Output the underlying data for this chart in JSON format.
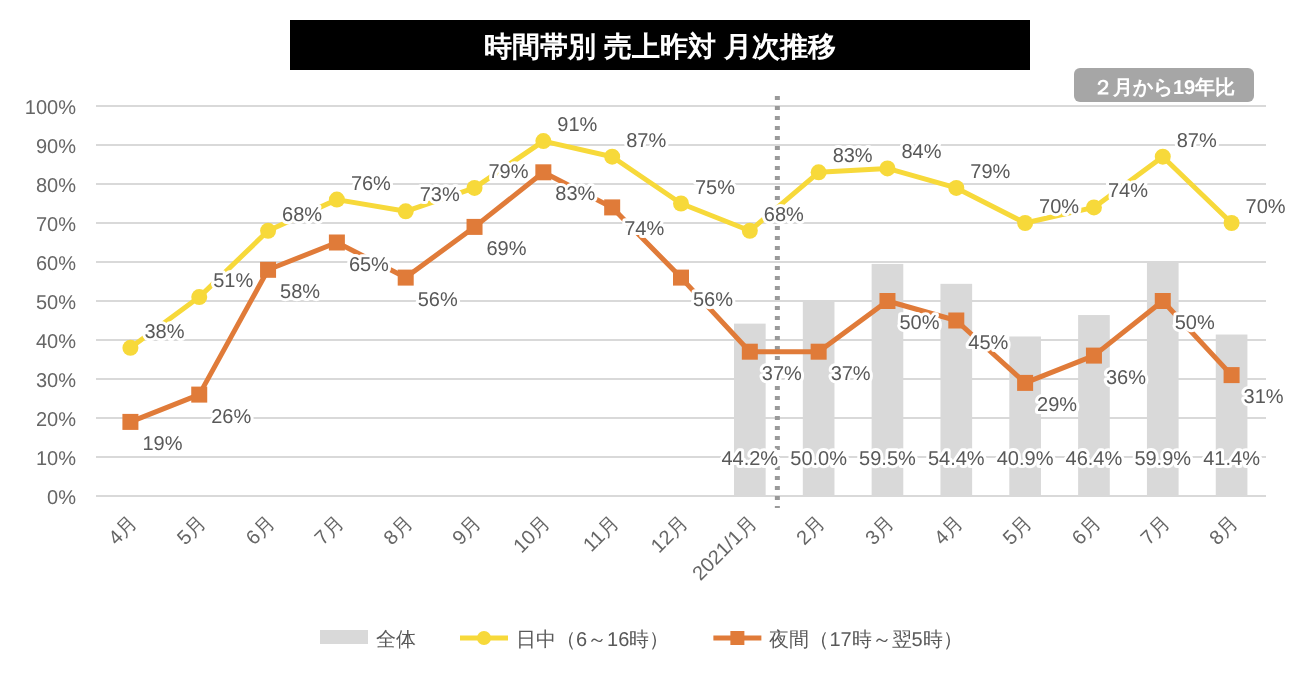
{
  "chart_data": {
    "type": "line",
    "title": "時間帯別 売上昨対 月次推移",
    "annotations": [
      "２月から19年比"
    ],
    "categories": [
      "4月",
      "5月",
      "6月",
      "7月",
      "8月",
      "9月",
      "10月",
      "11月",
      "12月",
      "2021/1月",
      "2月",
      "3月",
      "4月",
      "5月",
      "6月",
      "7月",
      "8月"
    ],
    "ylim": [
      0,
      100
    ],
    "yticks": [
      {
        "value": 0,
        "label": "0%"
      },
      {
        "value": 10,
        "label": "10%"
      },
      {
        "value": 20,
        "label": "20%"
      },
      {
        "value": 30,
        "label": "30%"
      },
      {
        "value": 40,
        "label": "40%"
      },
      {
        "value": 50,
        "label": "50%"
      },
      {
        "value": 60,
        "label": "60%"
      },
      {
        "value": 70,
        "label": "70%"
      },
      {
        "value": 80,
        "label": "80%"
      },
      {
        "value": 90,
        "label": "90%"
      },
      {
        "value": 100,
        "label": "100%"
      }
    ],
    "grid": "y",
    "legend": "bottom",
    "ref_lines": [
      {
        "axis": "x",
        "value": "2021/1月",
        "color": "#999999",
        "line_style": "dotted"
      }
    ],
    "series": [
      {
        "name": "全体",
        "type": "bar",
        "color": "#d9d9d9",
        "values": [
          null,
          null,
          null,
          null,
          null,
          null,
          null,
          null,
          null,
          44.2,
          50.0,
          59.5,
          54.4,
          40.9,
          46.4,
          59.9,
          41.4
        ],
        "value_labels": [
          null,
          null,
          null,
          null,
          null,
          null,
          null,
          null,
          null,
          "44.2%",
          "50.0%",
          "59.5%",
          "54.4%",
          "40.9%",
          "46.4%",
          "59.9%",
          "41.4%"
        ]
      },
      {
        "name": "日中（6～16時）",
        "color": "#f7d93a",
        "marker": "circle",
        "values": [
          38,
          51,
          68,
          76,
          73,
          79,
          91,
          87,
          75,
          68,
          83,
          84,
          79,
          70,
          74,
          87,
          70
        ],
        "value_labels": [
          "38%",
          "51%",
          "68%",
          "76%",
          "73%",
          "79%",
          "91%",
          "87%",
          "75%",
          "68%",
          "83%",
          "84%",
          "79%",
          "70%",
          "74%",
          "87%",
          "70%"
        ]
      },
      {
        "name": "夜間（17時～翌5時）",
        "color": "#e07b39",
        "marker": "square",
        "values": [
          19,
          26,
          58,
          65,
          56,
          69,
          83,
          74,
          56,
          37,
          37,
          50,
          45,
          29,
          36,
          50,
          31
        ],
        "value_labels": [
          "19%",
          "26%",
          "58%",
          "65%",
          "56%",
          "69%",
          "83%",
          "74%",
          "56%",
          "37%",
          "37%",
          "50%",
          "45%",
          "29%",
          "36%",
          "50%",
          "31%"
        ]
      }
    ]
  }
}
